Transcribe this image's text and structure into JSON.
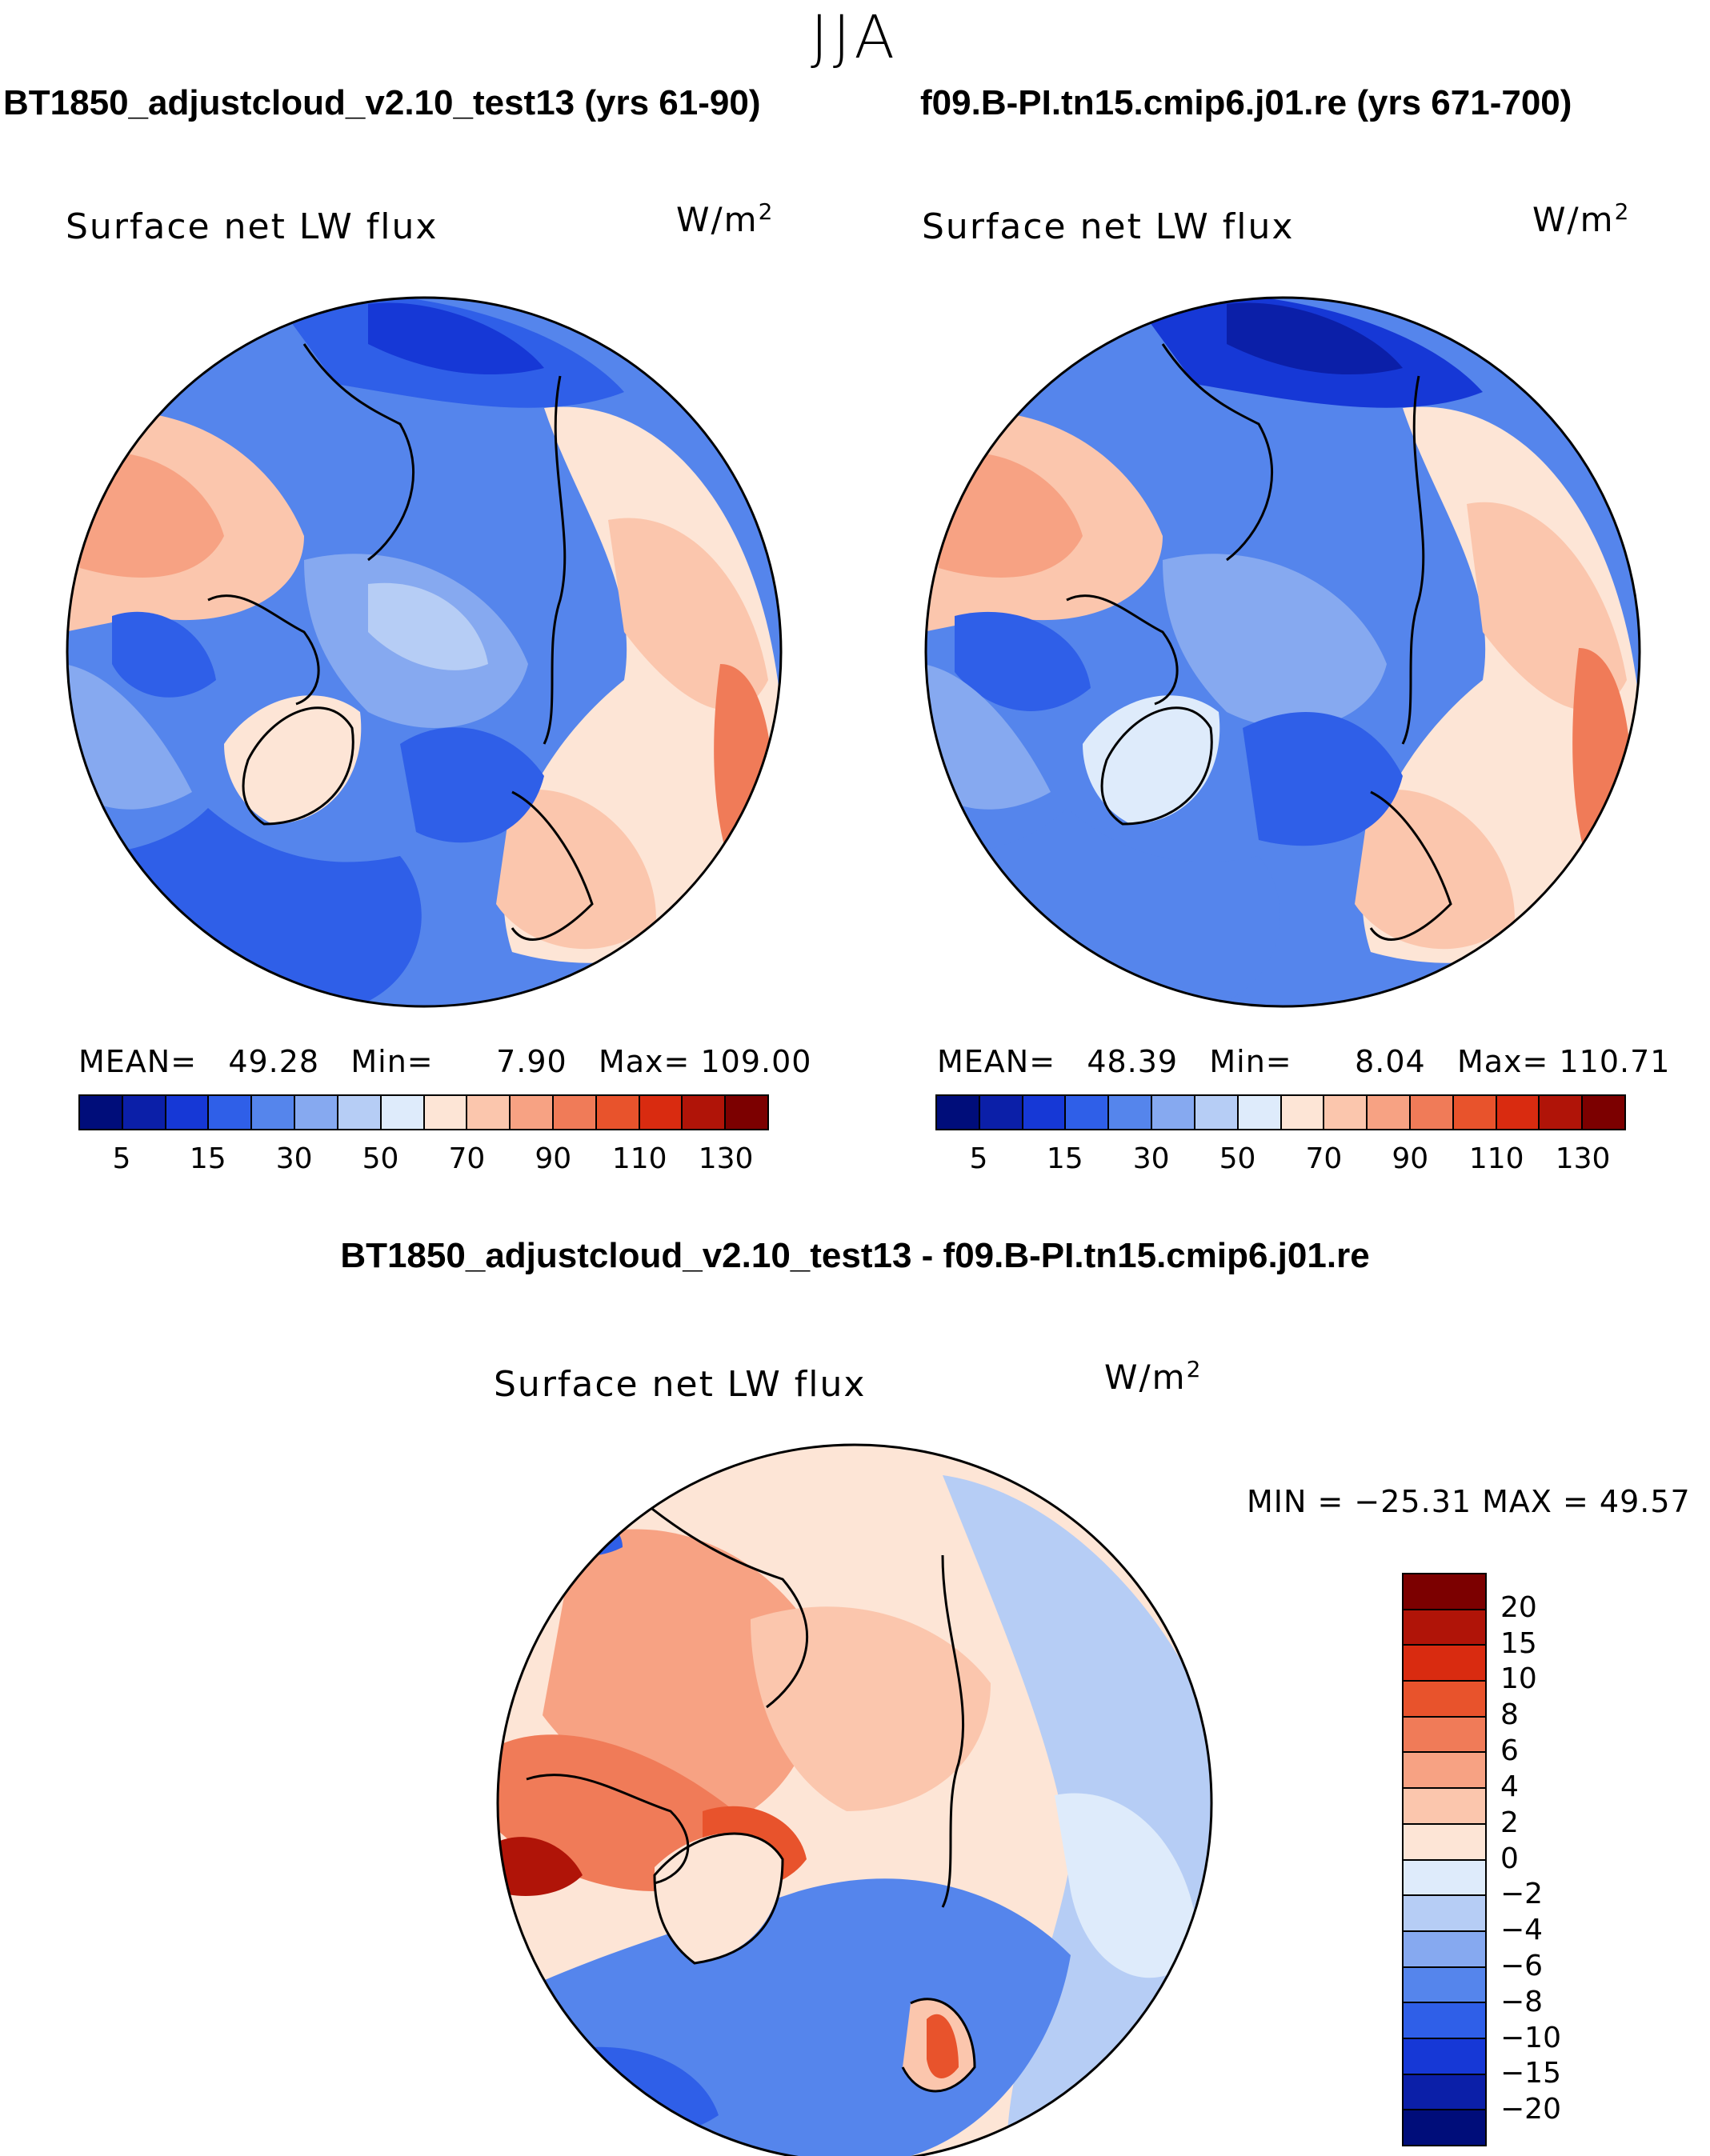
{
  "season": "JJA",
  "panels": [
    {
      "title": "BT1850_adjustcloud_v2.10_test13 (yrs 61-90)",
      "variable": "Surface net LW flux",
      "unit": "W/m",
      "unit_exp": "2",
      "stats": {
        "mean_label": "MEAN=",
        "mean": "49.28",
        "min_label": "Min=",
        "min": "7.90",
        "max_label": "Max=",
        "max": "109.00"
      }
    },
    {
      "title": "f09.B-PI.tn15.cmip6.j01.re (yrs 671-700)",
      "variable": "Surface net LW flux",
      "unit": "W/m",
      "unit_exp": "2",
      "stats": {
        "mean_label": "MEAN=",
        "mean": "48.39",
        "min_label": "Min=",
        "min": "8.04",
        "max_label": "Max=",
        "max": "110.71"
      }
    }
  ],
  "abs_colorbar": {
    "colors": [
      "#000d7a",
      "#0b1fa8",
      "#1638d6",
      "#2f5fe8",
      "#5585ec",
      "#86a9f0",
      "#b6cdf5",
      "#deebfb",
      "#fde5d6",
      "#fbc6ad",
      "#f7a283",
      "#f07b58",
      "#e8532c",
      "#d92b10",
      "#b01408",
      "#7c0000"
    ],
    "ticks": [
      "5",
      "15",
      "30",
      "50",
      "70",
      "90",
      "110",
      "130"
    ]
  },
  "diff": {
    "title": "BT1850_adjustcloud_v2.10_test13 - f09.B-PI.tn15.cmip6.j01.re",
    "variable": "Surface net LW flux",
    "unit": "W/m",
    "unit_exp": "2",
    "stats": "MIN = −25.31  MAX =  49.57",
    "colorbar": {
      "colors": [
        "#7c0000",
        "#b01408",
        "#d92b10",
        "#e8532c",
        "#f07b58",
        "#f7a283",
        "#fbc6ad",
        "#fde5d6",
        "#deebfb",
        "#b6cdf5",
        "#86a9f0",
        "#5585ec",
        "#2f5fe8",
        "#1638d6",
        "#0b1fa8",
        "#000d7a"
      ],
      "ticks": [
        "20",
        "15",
        "10",
        "8",
        "6",
        "4",
        "2",
        "0",
        "−2",
        "−4",
        "−6",
        "−8",
        "−10",
        "−15",
        "−20"
      ]
    }
  },
  "chart_data": [
    {
      "type": "heatmap",
      "projection": "north-polar-stereographic",
      "title": "BT1850_adjustcloud_v2.10_test13 (yrs 61-90)",
      "variable": "Surface net LW flux",
      "units": "W/m2",
      "season": "JJA",
      "mean": 49.28,
      "min": 7.9,
      "max": 109.0,
      "contour_levels": [
        5,
        10,
        15,
        20,
        30,
        40,
        50,
        60,
        70,
        80,
        90,
        100,
        110,
        120,
        130
      ]
    },
    {
      "type": "heatmap",
      "projection": "north-polar-stereographic",
      "title": "f09.B-PI.tn15.cmip6.j01.re (yrs 671-700)",
      "variable": "Surface net LW flux",
      "units": "W/m2",
      "season": "JJA",
      "mean": 48.39,
      "min": 8.04,
      "max": 110.71,
      "contour_levels": [
        5,
        10,
        15,
        20,
        30,
        40,
        50,
        60,
        70,
        80,
        90,
        100,
        110,
        120,
        130
      ]
    },
    {
      "type": "heatmap",
      "projection": "north-polar-stereographic",
      "title": "BT1850_adjustcloud_v2.10_test13 - f09.B-PI.tn15.cmip6.j01.re",
      "variable": "Surface net LW flux",
      "units": "W/m2",
      "season": "JJA",
      "min": -25.31,
      "max": 49.57,
      "contour_levels": [
        -20,
        -15,
        -10,
        -8,
        -6,
        -4,
        -2,
        0,
        2,
        4,
        6,
        8,
        10,
        15,
        20
      ]
    }
  ]
}
